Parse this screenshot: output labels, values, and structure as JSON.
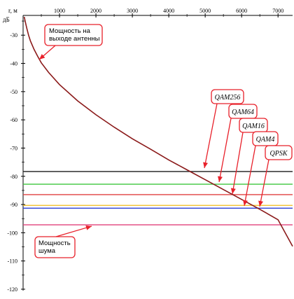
{
  "chart_data": {
    "type": "line",
    "x_axis": {
      "label": "r, м",
      "ticks": [
        1000,
        2000,
        3000,
        4000,
        5000,
        6000,
        7000
      ],
      "range": [
        0,
        7400
      ],
      "position": "top"
    },
    "y_axis": {
      "unit": "дБ",
      "ticks": [
        -30,
        -40,
        -50,
        -60,
        -70,
        -80,
        -90,
        -100,
        -110,
        -120
      ],
      "range": [
        -120,
        -23
      ]
    },
    "grid": false,
    "series": [
      {
        "name": "Мощность на выходе антенны",
        "color": "#8b1a1a",
        "x": [
          30,
          60,
          100,
          150,
          200,
          300,
          400,
          500,
          700,
          1000,
          1500,
          2000,
          2500,
          3000,
          3500,
          4000,
          4500,
          5000,
          5500,
          6000,
          6500,
          7000,
          7400
        ],
        "y": [
          -23.5,
          -25.2,
          -27.5,
          -30.0,
          -32.0,
          -35.0,
          -37.5,
          -39.8,
          -43.2,
          -47.5,
          -53.3,
          -58.2,
          -62.6,
          -66.7,
          -70.4,
          -74.2,
          -77.7,
          -81.2,
          -84.7,
          -88.2,
          -91.7,
          -95.4,
          -104.8
        ]
      }
    ],
    "thresholds": [
      {
        "name": "QAM256",
        "value": -78.3,
        "color": "#1a1a1a"
      },
      {
        "name": "QAM64",
        "value": -82.8,
        "color": "#3ec63e"
      },
      {
        "name": "QAM16",
        "value": -86.5,
        "color": "#e04040"
      },
      {
        "name": "QAM4",
        "value": -90.3,
        "color": "#f2c230"
      },
      {
        "name": "QPSK",
        "value": -91.3,
        "color": "#2b3fd6"
      },
      {
        "name": "Мощность шума",
        "value": -97.2,
        "color": "#e0407a"
      }
    ],
    "annotations": {
      "antenna_label": "Мощность на выходе антенны",
      "noise_label": "Мощность шума",
      "modulations": [
        "QAM256",
        "QAM64",
        "QAM16",
        "QAM4",
        "QPSK"
      ]
    },
    "accent_color": "#e8202a"
  }
}
